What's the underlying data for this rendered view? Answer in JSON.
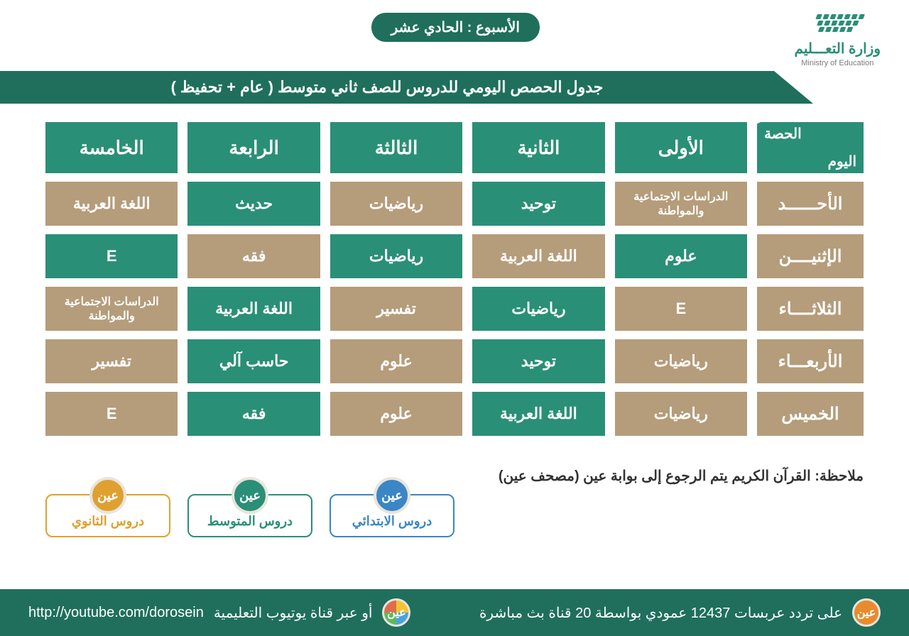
{
  "colors": {
    "green": "#2a8f77",
    "dark_green": "#1f6f5c",
    "tan": "#b59c7a",
    "white": "#ffffff",
    "text_dark": "#333333"
  },
  "logo": {
    "title_ar": "وزارة التعـــليم",
    "title_en": "Ministry of Education"
  },
  "week_badge": "الأسبوع : الحادي عشر",
  "title_bar": "جدول الحصص اليومي للدروس للصف ثاني متوسط ( عام + تحفيظ )",
  "corner": {
    "top": "الحصة",
    "bottom": "اليوم"
  },
  "periods": [
    "الأولى",
    "الثانية",
    "الثالثة",
    "الرابعة",
    "الخامسة"
  ],
  "days": [
    "الأحــــــد",
    "الإثنيــــن",
    "الثلاثــــاء",
    "الأربعـــاء",
    "الخميس"
  ],
  "schedule": [
    [
      {
        "t": "الدراسات الاجتماعية والمواطنة",
        "c": "tan",
        "small": true
      },
      {
        "t": "توحيد",
        "c": "green"
      },
      {
        "t": "رياضيات",
        "c": "tan"
      },
      {
        "t": "حديث",
        "c": "green"
      },
      {
        "t": "اللغة العربية",
        "c": "tan"
      }
    ],
    [
      {
        "t": "علوم",
        "c": "green"
      },
      {
        "t": "اللغة العربية",
        "c": "tan"
      },
      {
        "t": "رياضيات",
        "c": "green"
      },
      {
        "t": "فقه",
        "c": "tan"
      },
      {
        "t": "E",
        "c": "green"
      }
    ],
    [
      {
        "t": "E",
        "c": "tan"
      },
      {
        "t": "رياضيات",
        "c": "green"
      },
      {
        "t": "تفسير",
        "c": "tan"
      },
      {
        "t": "اللغة العربية",
        "c": "green"
      },
      {
        "t": "الدراسات الاجتماعية والمواطنة",
        "c": "tan",
        "small": true
      }
    ],
    [
      {
        "t": "رياضيات",
        "c": "tan"
      },
      {
        "t": "توحيد",
        "c": "green"
      },
      {
        "t": "علوم",
        "c": "tan"
      },
      {
        "t": "حاسب آلي",
        "c": "green"
      },
      {
        "t": "تفسير",
        "c": "tan"
      }
    ],
    [
      {
        "t": "رياضيات",
        "c": "tan"
      },
      {
        "t": "اللغة العربية",
        "c": "green"
      },
      {
        "t": "علوم",
        "c": "tan"
      },
      {
        "t": "فقه",
        "c": "green"
      },
      {
        "t": "E",
        "c": "tan"
      }
    ]
  ],
  "note": "ملاحظة: القرآن الكريم يتم الرجوع إلى بوابة عين (مصحف عين)",
  "channels": [
    {
      "label": "دروس الابتدائي",
      "badge": "عين",
      "color": "#3b86c4"
    },
    {
      "label": "دروس المتوسط",
      "badge": "عين",
      "color": "#2a8f77"
    },
    {
      "label": "دروس الثانوي",
      "badge": "عين",
      "color": "#e0a030"
    }
  ],
  "footer": {
    "right_badge": "عين",
    "right_text": "على تردد عربسات 12437 عمودي بواسطة 20 قناة بث مباشرة",
    "left_text": "أو عبر قناة يوتيوب التعليمية",
    "left_url": "http://youtube.com/dorosein"
  }
}
